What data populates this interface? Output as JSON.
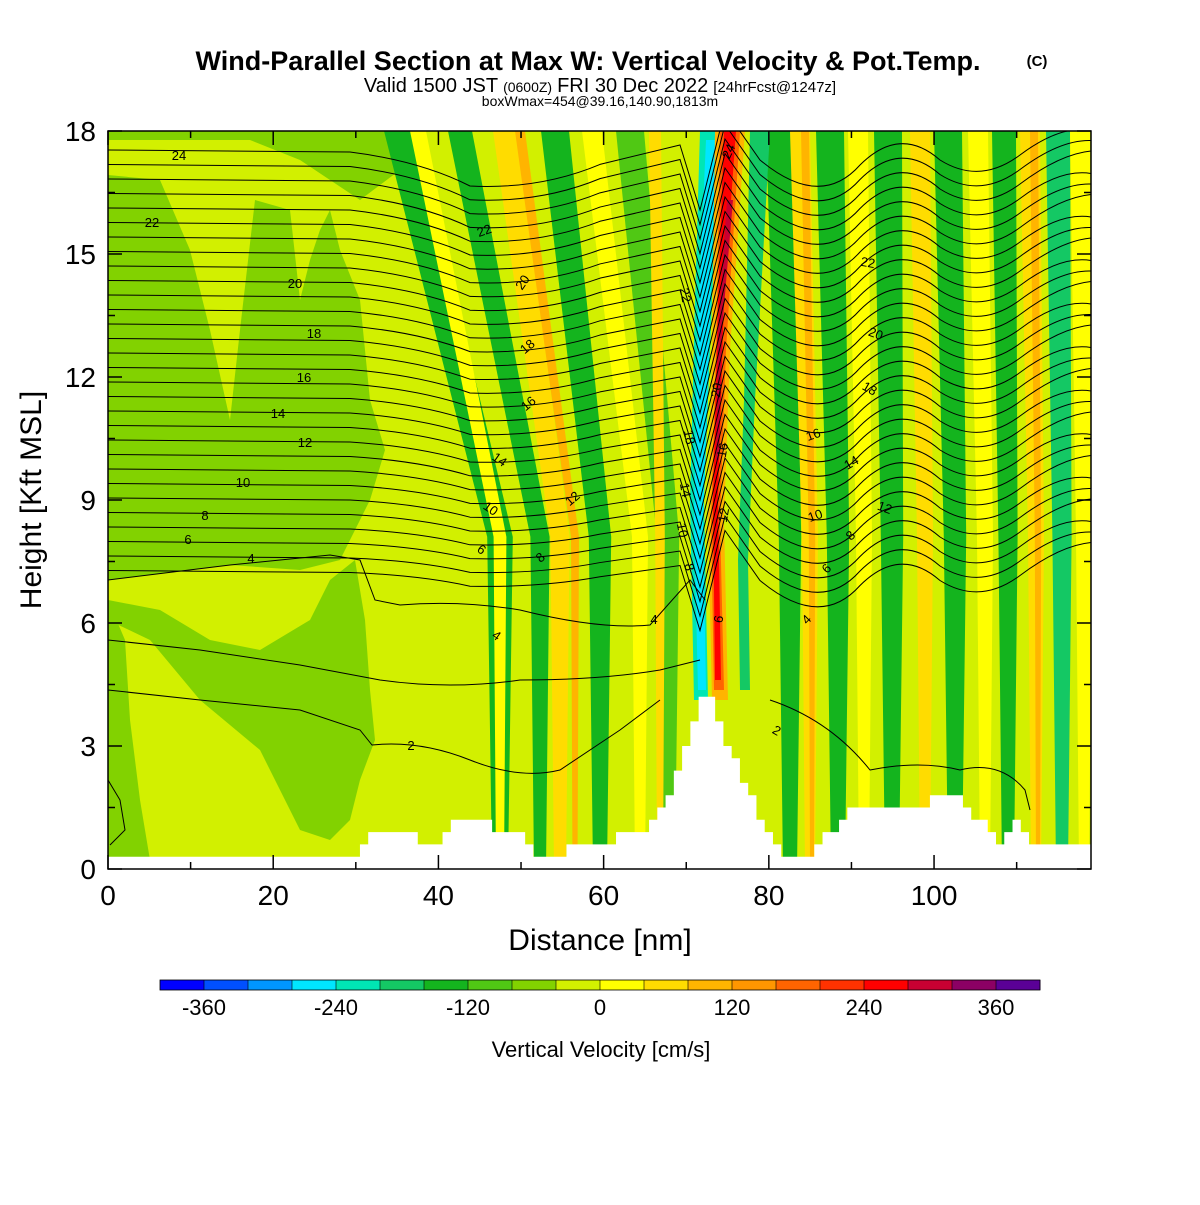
{
  "chart_data": {
    "type": "contour",
    "title": "Wind-Parallel Section at Max W: Vertical Velocity & Pot.Temp.",
    "title_mark": "(C)",
    "subtitle_parts": [
      "Valid 1500 JST",
      "(0600Z)",
      "FRI 30 Dec 2022",
      "[24hrFcst@1247z]"
    ],
    "subtitle2": "boxWmax=454@39.16,140.90,1813m",
    "xlabel": "Distance [nm]",
    "ylabel": "Height [Kft MSL]",
    "xlim": [
      0,
      119
    ],
    "ylim": [
      0,
      18
    ],
    "x_ticks": [
      "0",
      "20",
      "40",
      "60",
      "80",
      "100"
    ],
    "y_ticks": [
      "0",
      "3",
      "6",
      "9",
      "12",
      "15",
      "18"
    ],
    "colorbar": {
      "title": "Vertical Velocity [cm/s]",
      "min": -400,
      "max": 400,
      "step": 40,
      "tick_labels": [
        "-360",
        "-240",
        "-120",
        "0",
        "120",
        "240",
        "360"
      ],
      "colors": [
        "#0000ff",
        "#0050ff",
        "#0096ff",
        "#00e6ff",
        "#00e6b4",
        "#14c864",
        "#14b41e",
        "#50c814",
        "#82d200",
        "#d2f000",
        "#ffff00",
        "#ffdc00",
        "#ffb400",
        "#ff9600",
        "#ff6400",
        "#ff3200",
        "#ff0000",
        "#c80032",
        "#8c0064",
        "#5a0096"
      ]
    },
    "contour_labels": [
      "24",
      "22",
      "20",
      "18",
      "16",
      "14",
      "12",
      "10",
      "8",
      "6",
      "4",
      "22",
      "20",
      "18",
      "16",
      "14",
      "10",
      "6",
      "4",
      "8",
      "12",
      "2",
      "24",
      "22",
      "20",
      "18",
      "16",
      "14",
      "12",
      "10",
      "8",
      "6",
      "4",
      "4",
      "6",
      "8",
      "10",
      "12",
      "14",
      "16",
      "18",
      "20",
      "22",
      "2"
    ],
    "terrain": [
      [
        0,
        0.3
      ],
      [
        29.5,
        0.3
      ],
      [
        30.5,
        0.6
      ],
      [
        31.5,
        0.9
      ],
      [
        36.5,
        0.9
      ],
      [
        37.5,
        0.6
      ],
      [
        39.5,
        0.6
      ],
      [
        40.5,
        0.9
      ],
      [
        41.5,
        1.2
      ],
      [
        45.5,
        1.2
      ],
      [
        46.5,
        0.9
      ],
      [
        49.5,
        0.9
      ],
      [
        50.5,
        0.6
      ],
      [
        51.5,
        0.3
      ],
      [
        54.5,
        0.3
      ],
      [
        55.5,
        0.6
      ],
      [
        60.5,
        0.6
      ],
      [
        61.5,
        0.9
      ],
      [
        64.5,
        0.9
      ],
      [
        65.5,
        1.2
      ],
      [
        66.5,
        1.5
      ],
      [
        67.5,
        1.8
      ],
      [
        68.5,
        2.4
      ],
      [
        69.5,
        3.0
      ],
      [
        70.5,
        3.6
      ],
      [
        71.5,
        4.2
      ],
      [
        72.5,
        4.2
      ],
      [
        73.5,
        3.6
      ],
      [
        74.5,
        3.0
      ],
      [
        75.5,
        2.7
      ],
      [
        76.5,
        2.1
      ],
      [
        77.5,
        1.8
      ],
      [
        78.5,
        1.2
      ],
      [
        79.5,
        0.9
      ],
      [
        80.5,
        0.6
      ],
      [
        81.5,
        0.3
      ],
      [
        84.5,
        0.3
      ],
      [
        85.5,
        0.6
      ],
      [
        86.5,
        0.9
      ],
      [
        88.5,
        1.2
      ],
      [
        89.5,
        1.5
      ],
      [
        98.5,
        1.5
      ],
      [
        99.5,
        1.8
      ],
      [
        102.5,
        1.8
      ],
      [
        103.5,
        1.5
      ],
      [
        104.5,
        1.2
      ],
      [
        106.5,
        0.9
      ],
      [
        107.5,
        0.6
      ],
      [
        108.5,
        0.9
      ],
      [
        109.5,
        1.2
      ],
      [
        110.5,
        0.9
      ],
      [
        111.5,
        0.6
      ],
      [
        119,
        0.6
      ]
    ]
  }
}
